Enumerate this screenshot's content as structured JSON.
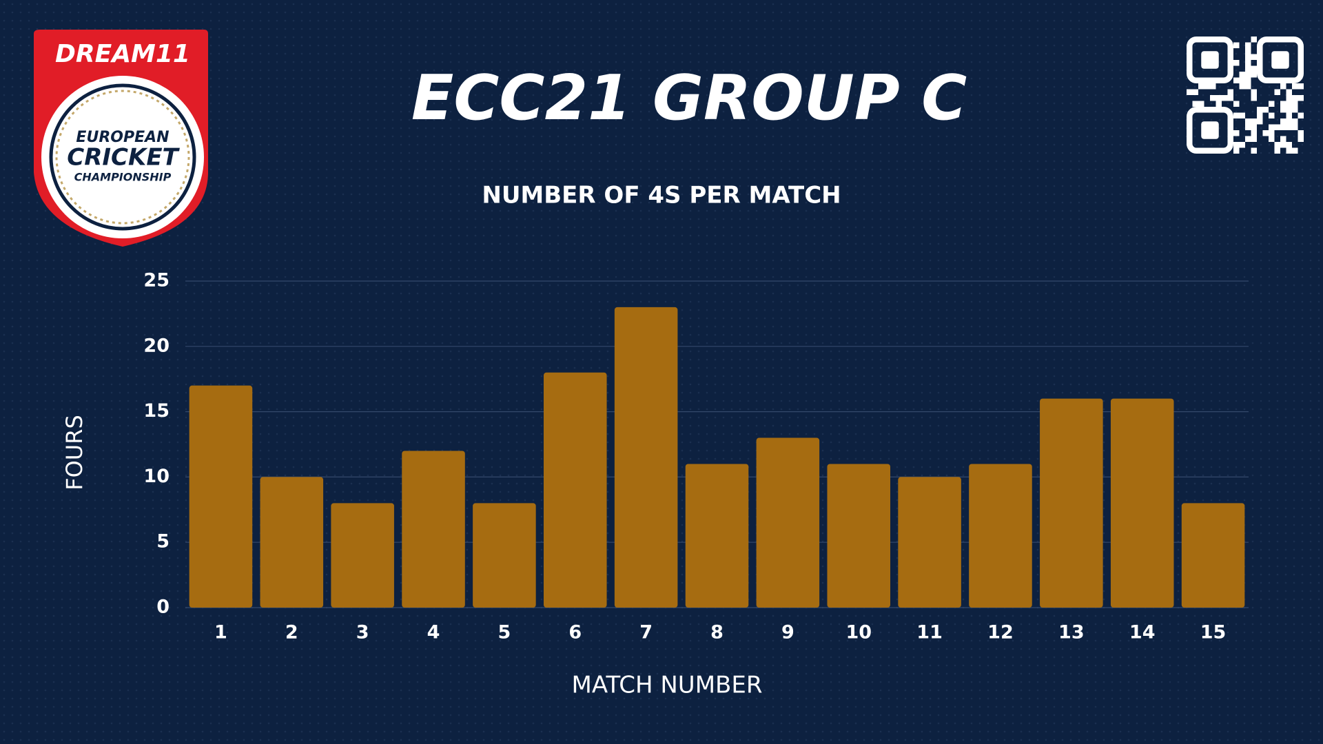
{
  "chart_data": {
    "type": "bar",
    "title": "ECC21 GROUP C",
    "subtitle": "NUMBER OF 4S PER MATCH",
    "x_label": "MATCH NUMBER",
    "y_label": "FOURS",
    "categories": [
      "1",
      "2",
      "3",
      "4",
      "5",
      "6",
      "7",
      "8",
      "9",
      "10",
      "11",
      "12",
      "13",
      "14",
      "15"
    ],
    "values": [
      17,
      10,
      8,
      12,
      8,
      18,
      23,
      11,
      13,
      11,
      10,
      11,
      16,
      16,
      8
    ],
    "color": "#a66c11",
    "ylim": [
      0,
      25
    ],
    "yticks": [
      0,
      5,
      10,
      15,
      20,
      25
    ],
    "grid": true
  },
  "logo": {
    "brand": "DREAM11",
    "lines": [
      "EUROPEAN",
      "CRICKET",
      "CHAMPIONSHIP"
    ]
  }
}
